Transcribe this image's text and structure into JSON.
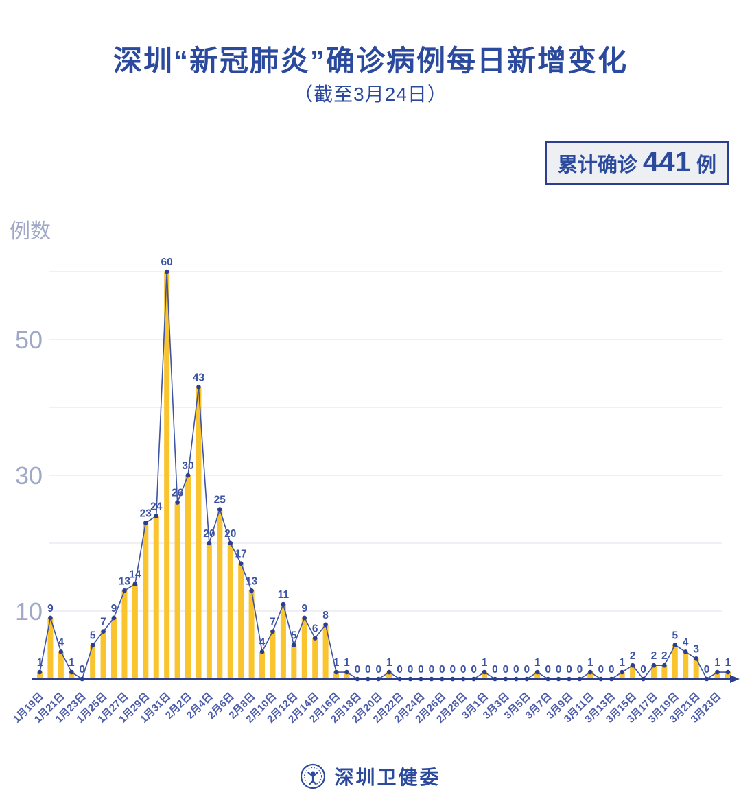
{
  "chart_data": {
    "type": "bar",
    "line_overlay": true,
    "title": "深圳“新冠肺炎”确诊病例每日新增变化",
    "subtitle": "（截至3月24日）",
    "ylabel": "例数",
    "xlabel": "",
    "n_points": 66,
    "x_tick_labels": [
      "1月19日",
      "1月21日",
      "1月23日",
      "1月25日",
      "1月27日",
      "1月29日",
      "1月31日",
      "2月2日",
      "2月4日",
      "2月6日",
      "2月8日",
      "2月10日",
      "2月12日",
      "2月14日",
      "2月16日",
      "2月18日",
      "2月20日",
      "2月22日",
      "2月24日",
      "2月26日",
      "2月28日",
      "3月1日",
      "3月3日",
      "3月5日",
      "3月7日",
      "3月9日",
      "3月11日",
      "3月13日",
      "3月15日",
      "3月17日",
      "3月19日",
      "3月21日",
      "3月23日"
    ],
    "x_tick_step": 2,
    "values": [
      1,
      9,
      4,
      1,
      0,
      5,
      7,
      9,
      13,
      14,
      23,
      24,
      60,
      26,
      30,
      43,
      20,
      25,
      20,
      17,
      13,
      4,
      7,
      11,
      5,
      9,
      6,
      8,
      1,
      1,
      0,
      0,
      0,
      1,
      0,
      0,
      0,
      0,
      0,
      0,
      0,
      0,
      1,
      0,
      0,
      0,
      0,
      1,
      0,
      0,
      0,
      0,
      1,
      0,
      0,
      1,
      2,
      0,
      2,
      2,
      5,
      4,
      3,
      0,
      1,
      1
    ],
    "values_total": 441,
    "y_ticks_labeled": [
      10,
      30,
      50
    ],
    "y_gridlines": [
      10,
      20,
      30,
      40,
      50,
      60
    ],
    "ylim": [
      0,
      62
    ],
    "grid": true,
    "legend_position": "none"
  },
  "badge": {
    "prefix": "累计确诊",
    "count": "441",
    "suffix": "例"
  },
  "footer": {
    "org": "深圳卫健委",
    "logo": "szhc-emblem-icon"
  },
  "theme": {
    "title_color": "#2B4A9D",
    "axis_gray": "#9FA8C7",
    "date_label_color": "#4C5CA8",
    "value_label_color": "#3D53A4",
    "bar_color": "#FAC42E",
    "line_color": "#3D53A4",
    "dot_color": "#2C3E8F",
    "grid_color": "#ECEAF2",
    "axis_color": "#2C3E8F",
    "badge_bg": "#EDEFF3",
    "badge_border": "#2C3E8F",
    "background": "#FFFFFF"
  }
}
